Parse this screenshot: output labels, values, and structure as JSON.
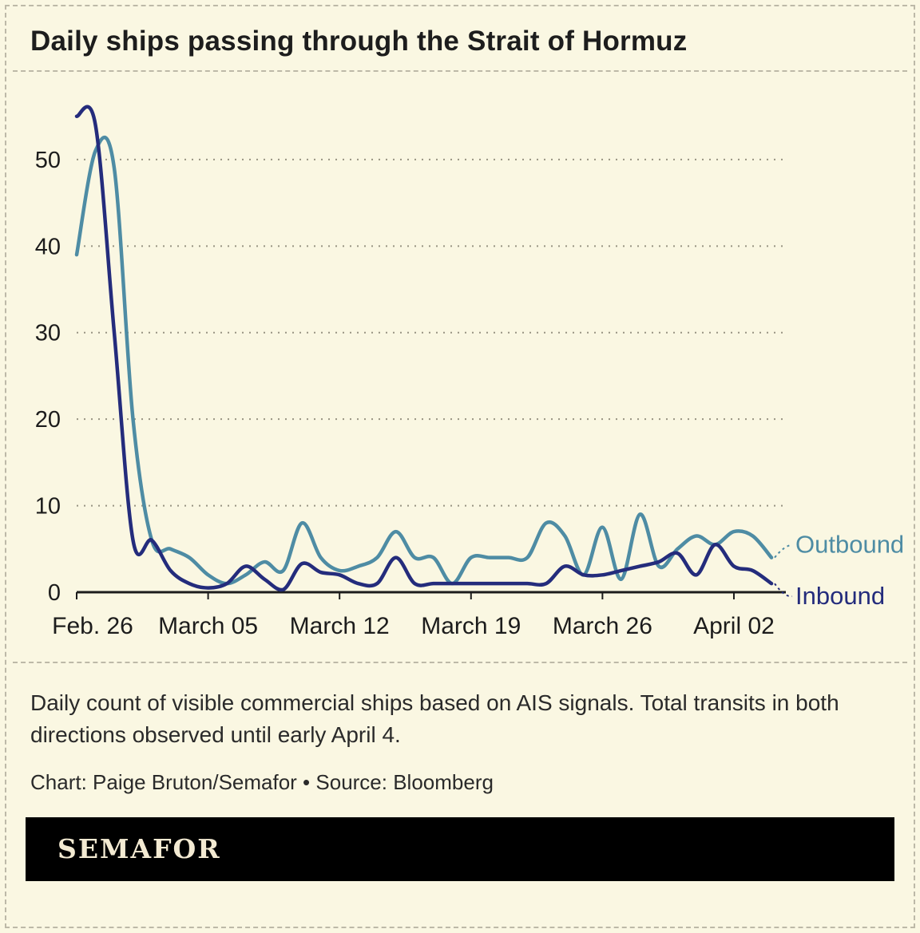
{
  "title": "Daily ships passing through the Strait of Hormuz",
  "caption": "Daily count of visible commercial ships based on AIS signals. Total transits in both directions observed until early April 4.",
  "credit": "Chart: Paige Bruton/Semafor • Source: Bloomberg",
  "brand": "SEMAFOR",
  "colors": {
    "background": "#faf7e2",
    "outbound": "#4E8CA4",
    "inbound": "#242C7C",
    "grid": "#989483",
    "axis": "#1c1c1c",
    "footer_bg": "#000000",
    "footer_text": "#f3ead2"
  },
  "chart_data": {
    "type": "line",
    "title": "Daily ships passing through the Strait of Hormuz",
    "x_tick_labels": [
      "Feb. 26",
      "March 05",
      "March 12",
      "March 19",
      "March 26",
      "April 02"
    ],
    "x_tick_positions": [
      0,
      7,
      14,
      21,
      28,
      35
    ],
    "y_ticks": [
      0,
      10,
      20,
      30,
      40,
      50
    ],
    "ylim": [
      0,
      57
    ],
    "grid": true,
    "legend_position": "right-end-labels",
    "series": [
      {
        "name": "Outbound",
        "color": "#4E8CA4",
        "values": [
          39,
          51,
          49,
          20,
          6,
          5,
          4,
          2,
          1,
          2,
          3.5,
          2.5,
          8,
          4,
          2.5,
          3,
          4,
          7,
          4,
          4,
          1,
          4,
          4,
          4,
          4,
          8,
          6.5,
          2,
          7.5,
          1.5,
          9,
          3,
          5,
          6.5,
          5.5,
          7,
          6.5,
          4
        ]
      },
      {
        "name": "Inbound",
        "color": "#242C7C",
        "values": [
          55,
          54,
          30,
          6,
          6,
          2.5,
          1,
          0.5,
          1,
          3,
          1.5,
          0.3,
          3.3,
          2.3,
          2,
          1,
          1,
          4,
          1,
          1,
          1,
          1,
          1,
          1,
          1,
          1,
          3,
          2,
          2,
          2.5,
          3,
          3.5,
          4.5,
          2,
          5.5,
          3,
          2.5,
          1
        ]
      }
    ]
  }
}
